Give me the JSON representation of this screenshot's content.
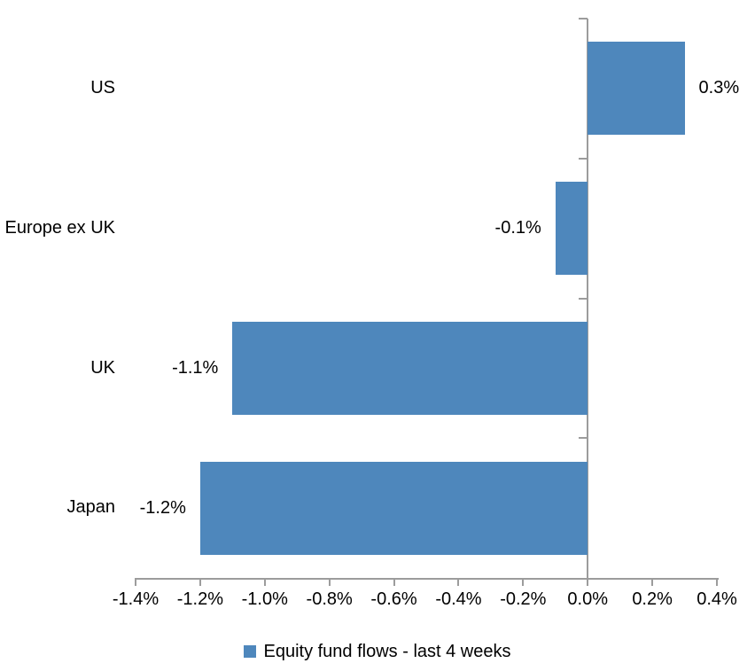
{
  "chart_data": {
    "type": "bar",
    "orientation": "horizontal",
    "title": "",
    "xlabel": "",
    "ylabel": "",
    "categories": [
      "US",
      "Europe ex UK",
      "UK",
      "Japan"
    ],
    "values": [
      0.3,
      -0.1,
      -1.1,
      -1.2
    ],
    "data_labels": [
      "0.3%",
      "-0.1%",
      "-1.1%",
      "-1.2%"
    ],
    "legend": "Equity fund flows - last 4 weeks",
    "legend_position": "bottom-center",
    "grid": false,
    "value_axis": {
      "min": -1.4,
      "max": 0.4,
      "tick_step": 0.2,
      "tick_labels": [
        "-1.4%",
        "-1.2%",
        "-1.0%",
        "-0.8%",
        "-0.6%",
        "-0.4%",
        "-0.2%",
        "0.0%",
        "0.2%",
        "0.4%"
      ]
    },
    "colors": {
      "bar": "#4E87BC",
      "axis": "#9C9C9C",
      "text": "#000000",
      "background": "#FFFFFF"
    }
  }
}
